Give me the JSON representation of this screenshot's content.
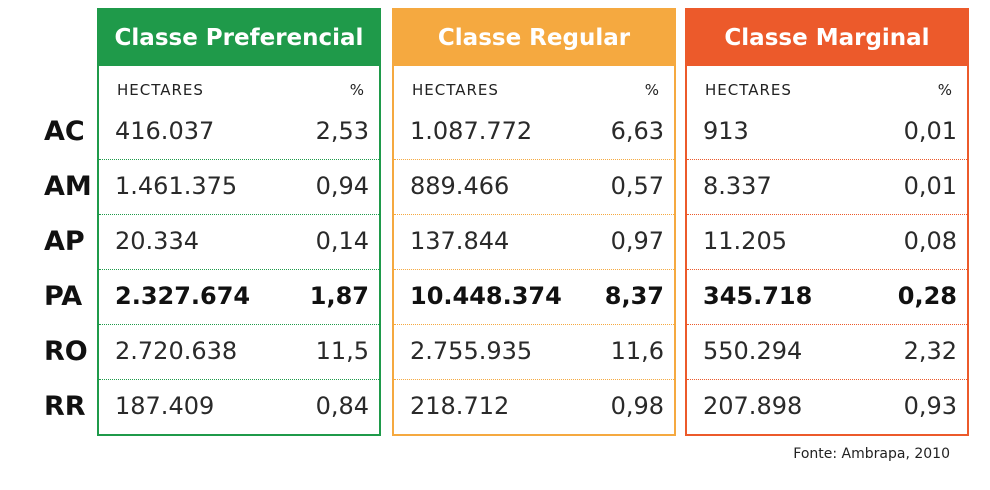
{
  "chart_data": {
    "type": "table",
    "rows": [
      "AC",
      "AM",
      "AP",
      "PA",
      "RO",
      "RR"
    ],
    "bold_row": "PA",
    "column_labels": {
      "hectares": "HECTARES",
      "percent": "%"
    },
    "panels": [
      {
        "title": "Classe Preferencial",
        "color": "#1f9a4a",
        "hectares": [
          "416.037",
          "1.461.375",
          "20.334",
          "2.327.674",
          "2.720.638",
          "187.409"
        ],
        "percent": [
          "2,53",
          "0,94",
          "0,14",
          "1,87",
          "11,5",
          "0,84"
        ]
      },
      {
        "title": "Classe Regular",
        "color": "#f5a940",
        "hectares": [
          "1.087.772",
          "889.466",
          "137.844",
          "10.448.374",
          "2.755.935",
          "218.712"
        ],
        "percent": [
          "6,63",
          "0,57",
          "0,97",
          "8,37",
          "11,6",
          "0,98"
        ]
      },
      {
        "title": "Classe Marginal",
        "color": "#ec5a2b",
        "hectares": [
          "913",
          "8.337",
          "11.205",
          "345.718",
          "550.294",
          "207.898"
        ],
        "percent": [
          "0,01",
          "0,01",
          "0,08",
          "0,28",
          "2,32",
          "0,93"
        ]
      }
    ]
  },
  "source": "Fonte: Ambrapa, 2010"
}
